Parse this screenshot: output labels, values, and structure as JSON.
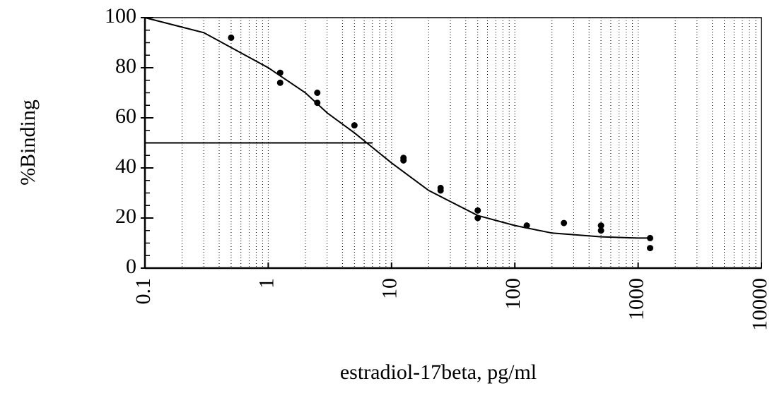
{
  "chart_data": {
    "type": "scatter",
    "xlabel": "estradiol-17beta, pg/ml",
    "ylabel": "%Binding",
    "xscale": "log",
    "xlim": [
      0.1,
      10000
    ],
    "ylim": [
      0,
      100
    ],
    "xticks": [
      0.1,
      1,
      10,
      100,
      1000,
      10000
    ],
    "yticks": [
      0,
      20,
      40,
      60,
      80,
      100
    ],
    "grid": true,
    "series": [
      {
        "type": "scatter",
        "color": "#000000",
        "x": [
          0.5,
          1.25,
          1.25,
          2.5,
          2.5,
          5,
          12.5,
          12.5,
          25,
          25,
          50,
          50,
          125,
          250,
          500,
          500,
          1250,
          1250
        ],
        "values": [
          92,
          78,
          74,
          70,
          66,
          57,
          44,
          43,
          32,
          31,
          23,
          20,
          17,
          18,
          17,
          15,
          12,
          8
        ]
      },
      {
        "type": "line",
        "color": "#000000",
        "x": [
          0.1,
          0.3,
          1,
          2,
          3,
          5,
          10,
          20,
          50,
          100,
          200,
          500,
          1000,
          1300
        ],
        "values": [
          100,
          94,
          80,
          70,
          62,
          54,
          42,
          31,
          21,
          17,
          14,
          12.5,
          12,
          12
        ]
      },
      {
        "type": "line",
        "color": "#000000",
        "x": [
          0.1,
          7
        ],
        "values": [
          50,
          50
        ]
      }
    ]
  }
}
